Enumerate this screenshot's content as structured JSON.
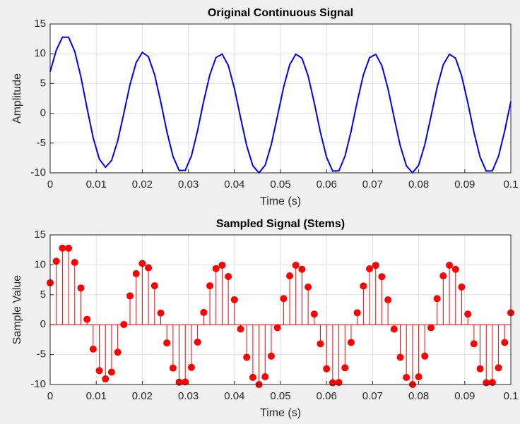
{
  "chart_data": [
    {
      "type": "line",
      "title": "Original Continuous Signal",
      "xlabel": "Time (s)",
      "ylabel": "Amplitude",
      "color": "#0000ff",
      "grid": true,
      "xlim": [
        0,
        0.1
      ],
      "ylim": [
        -10,
        15
      ],
      "xticks": [
        0,
        0.01,
        0.02,
        0.03,
        0.04,
        0.05,
        0.06,
        0.07,
        0.08,
        0.09,
        0.1
      ],
      "yticks": [
        -10,
        -5,
        0,
        5,
        10,
        15
      ],
      "x": [
        0,
        0.00133,
        0.00267,
        0.004,
        0.00533,
        0.00667,
        0.008,
        0.00933,
        0.01067,
        0.012,
        0.01333,
        0.01467,
        0.016,
        0.01733,
        0.01867,
        0.02,
        0.02133,
        0.02267,
        0.024,
        0.02533,
        0.02667,
        0.028,
        0.02933,
        0.03067,
        0.032,
        0.03333,
        0.03467,
        0.036,
        0.03733,
        0.03867,
        0.04,
        0.04133,
        0.04267,
        0.044,
        0.04533,
        0.04667,
        0.048,
        0.04933,
        0.05067,
        0.052,
        0.05333,
        0.05467,
        0.056,
        0.05733,
        0.05867,
        0.06,
        0.06133,
        0.06267,
        0.064,
        0.06533,
        0.06667,
        0.068,
        0.06933,
        0.07067,
        0.072,
        0.07333,
        0.07467,
        0.076,
        0.07733,
        0.07867,
        0.08,
        0.08133,
        0.08267,
        0.084,
        0.08533,
        0.08667,
        0.088,
        0.08933,
        0.09067,
        0.092,
        0.09333,
        0.09467,
        0.096,
        0.09733,
        0.09867,
        0.1
      ],
      "values": [
        6.99,
        10.61,
        12.79,
        12.78,
        10.4,
        6.13,
        0.9,
        -4.09,
        -7.68,
        -9.06,
        -7.93,
        -4.61,
        0.03,
        4.81,
        8.53,
        10.24,
        9.51,
        6.5,
        1.94,
        -3.05,
        -7.25,
        -9.61,
        -9.57,
        -7.14,
        -2.92,
        2.04,
        6.5,
        9.37,
        9.94,
        8.04,
        4.17,
        -0.73,
        -5.45,
        -8.81,
        -10.0,
        -8.71,
        -5.26,
        -0.51,
        4.36,
        8.16,
        9.93,
        9.25,
        6.29,
        1.76,
        -3.2,
        -7.37,
        -9.71,
        -9.66,
        -7.21,
        -2.98,
        1.99,
        6.46,
        9.34,
        9.91,
        8.02,
        4.15,
        -0.74,
        -5.46,
        -8.82,
        -10.0,
        -8.71,
        -5.26,
        -0.51,
        4.36,
        8.16,
        9.93,
        9.25,
        6.29,
        1.76,
        -3.2,
        -7.37,
        -9.71,
        -9.66,
        -7.21,
        -2.98,
        1.99
      ]
    },
    {
      "type": "stem",
      "title": "Sampled Signal (Stems)",
      "xlabel": "Time (s)",
      "ylabel": "Sample Value",
      "color": "#ff0000",
      "grid": true,
      "xlim": [
        0,
        0.1
      ],
      "ylim": [
        -10,
        15
      ],
      "xticks": [
        0,
        0.01,
        0.02,
        0.03,
        0.04,
        0.05,
        0.06,
        0.07,
        0.08,
        0.09,
        0.1
      ],
      "yticks": [
        -10,
        -5,
        0,
        5,
        10,
        15
      ],
      "x": [
        0,
        0.00133,
        0.00267,
        0.004,
        0.00533,
        0.00667,
        0.008,
        0.00933,
        0.01067,
        0.012,
        0.01333,
        0.01467,
        0.016,
        0.01733,
        0.01867,
        0.02,
        0.02133,
        0.02267,
        0.024,
        0.02533,
        0.02667,
        0.028,
        0.02933,
        0.03067,
        0.032,
        0.03333,
        0.03467,
        0.036,
        0.03733,
        0.03867,
        0.04,
        0.04133,
        0.04267,
        0.044,
        0.04533,
        0.04667,
        0.048,
        0.04933,
        0.05067,
        0.052,
        0.05333,
        0.05467,
        0.056,
        0.05733,
        0.05867,
        0.06,
        0.06133,
        0.06267,
        0.064,
        0.06533,
        0.06667,
        0.068,
        0.06933,
        0.07067,
        0.072,
        0.07333,
        0.07467,
        0.076,
        0.07733,
        0.07867,
        0.08,
        0.08133,
        0.08267,
        0.084,
        0.08533,
        0.08667,
        0.088,
        0.08933,
        0.09067,
        0.092,
        0.09333,
        0.09467,
        0.096,
        0.09733,
        0.09867,
        0.1
      ],
      "values": [
        6.99,
        10.61,
        12.79,
        12.78,
        10.4,
        6.13,
        0.9,
        -4.09,
        -7.68,
        -9.06,
        -7.93,
        -4.61,
        0.03,
        4.81,
        8.53,
        10.24,
        9.51,
        6.5,
        1.94,
        -3.05,
        -7.25,
        -9.61,
        -9.57,
        -7.14,
        -2.92,
        2.04,
        6.5,
        9.37,
        9.94,
        8.04,
        4.17,
        -0.73,
        -5.45,
        -8.81,
        -10.0,
        -8.71,
        -5.26,
        -0.51,
        4.36,
        8.16,
        9.93,
        9.25,
        6.29,
        1.76,
        -3.2,
        -7.37,
        -9.71,
        -9.66,
        -7.21,
        -2.98,
        1.99,
        6.46,
        9.34,
        9.91,
        8.02,
        4.15,
        -0.74,
        -5.46,
        -8.82,
        -10.0,
        -8.71,
        -5.26,
        -0.51,
        4.36,
        8.16,
        9.93,
        9.25,
        6.29,
        1.76,
        -3.2,
        -7.37,
        -9.71,
        -9.66,
        -7.21,
        -2.98,
        1.99
      ]
    }
  ]
}
